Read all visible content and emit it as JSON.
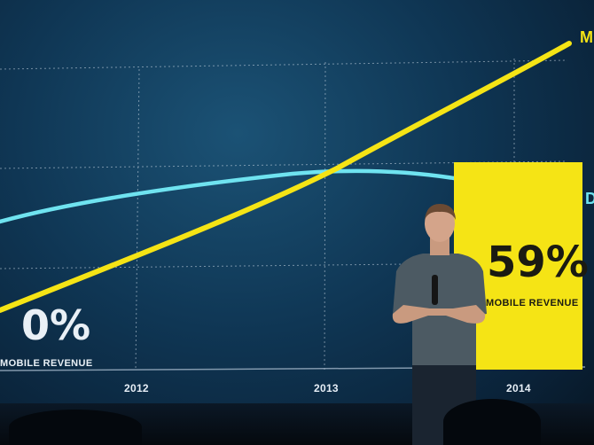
{
  "scene": "keynote-stage",
  "chart_data": {
    "type": "line",
    "x_ticks": [
      "2012",
      "2013",
      "2014"
    ],
    "grid": true,
    "series": [
      {
        "name": "",
        "color": "#f5e415",
        "values": [
          0,
          59
        ]
      },
      {
        "name": "",
        "color": "#6fe3f0"
      }
    ],
    "annotations": {
      "start_value": "0%",
      "start_caption": "MOBILE REVENUE",
      "end_value": "59%",
      "end_caption": "MOBILE REVENUE",
      "edge_label_top": "M",
      "edge_label_right": "D"
    }
  },
  "colors": {
    "highlight": "#f5e415",
    "series_yellow": "#f5e415",
    "series_cyan": "#6fe3f0",
    "background": "#0f3654"
  }
}
